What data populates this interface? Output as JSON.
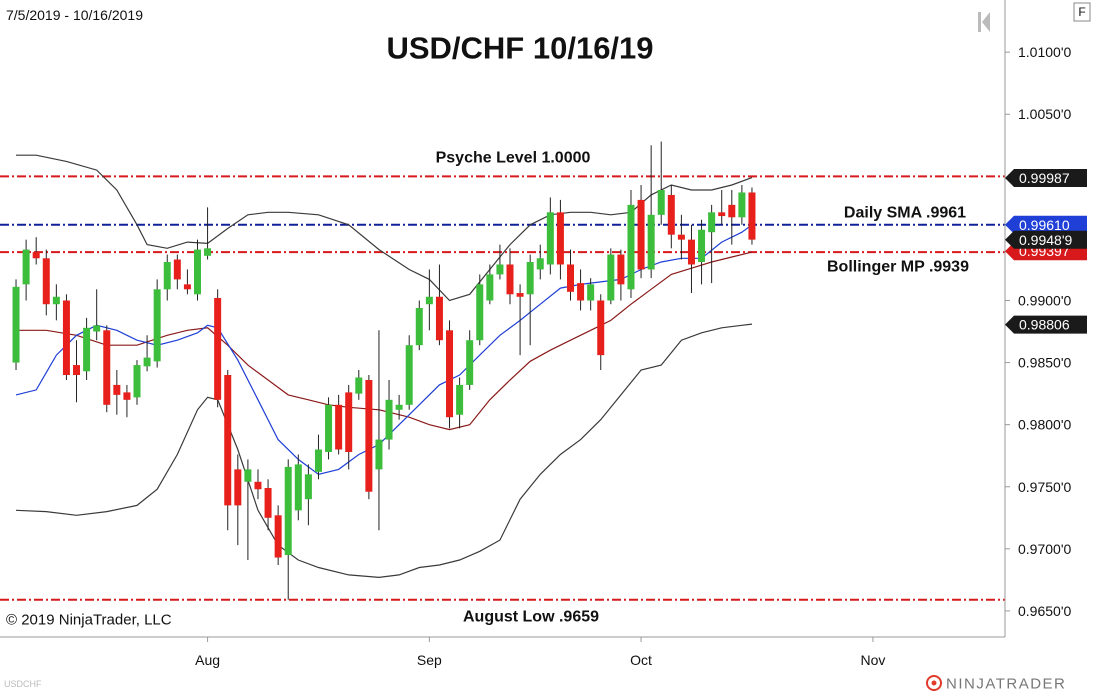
{
  "chart_data": {
    "type": "candlestick",
    "title": "USD/CHF 10/16/19",
    "subtitle": "7/5/2019 - 10/16/2019",
    "credit": "© 2019 NinjaTrader, LLC",
    "corner_button": "F",
    "watermark": "USDCHF",
    "logo": "NINJATRADER",
    "categories": [
      null,
      null,
      null,
      null,
      null,
      null,
      null,
      null,
      null,
      null,
      null,
      null,
      null,
      null,
      null,
      null,
      null,
      null,
      null,
      null,
      null,
      null,
      null,
      null,
      null,
      null,
      null,
      null,
      null,
      null,
      null,
      null,
      null,
      null,
      null,
      null,
      null,
      null,
      null,
      null,
      null,
      null,
      null,
      null,
      null,
      null,
      null,
      null,
      null,
      null,
      null,
      null,
      null,
      null,
      null,
      null,
      null,
      null,
      null,
      null,
      null,
      null,
      null,
      null,
      null,
      null,
      null,
      null,
      null,
      null,
      null,
      null,
      null,
      null
    ],
    "open": [
      0.985,
      0.9913,
      0.9939,
      0.9934,
      0.9897,
      0.99,
      0.9848,
      0.9843,
      0.9875,
      0.9876,
      0.9832,
      0.9826,
      0.9822,
      0.9847,
      0.9851,
      0.9909,
      0.9933,
      0.9913,
      0.9905,
      0.9936,
      0.9902,
      0.984,
      0.9764,
      0.9754,
      0.9754,
      0.9749,
      0.9727,
      0.9695,
      0.9731,
      0.974,
      0.9762,
      0.9778,
      0.9816,
      0.9826,
      0.9825,
      0.9836,
      0.9764,
      0.9788,
      0.9812,
      0.9816,
      0.9864,
      0.9897,
      0.9903,
      0.9876,
      0.9808,
      0.9832,
      0.9868,
      0.99,
      0.9921,
      0.9929,
      0.9906,
      0.9905,
      0.9925,
      0.9929,
      0.9971,
      0.9929,
      0.9914,
      0.99,
      0.99,
      0.99,
      0.9937,
      0.9909,
      0.9981,
      0.9925,
      0.9969,
      0.9985,
      0.9953,
      0.9949,
      0.9931,
      0.9955,
      0.9971,
      0.9977,
      0.9967,
      0.9987
    ],
    "high": [
      0.9917,
      0.9949,
      0.9951,
      0.9941,
      0.9913,
      0.9905,
      0.9868,
      0.9886,
      0.9909,
      0.988,
      0.9844,
      0.9832,
      0.9852,
      0.9872,
      0.9917,
      0.9937,
      0.9937,
      0.9925,
      0.9949,
      0.9975,
      0.9909,
      0.9844,
      0.9776,
      0.9772,
      0.9764,
      0.9756,
      0.9735,
      0.9772,
      0.9776,
      0.9768,
      0.9792,
      0.9822,
      0.9824,
      0.9832,
      0.9844,
      0.984,
      0.9876,
      0.9836,
      0.9824,
      0.9872,
      0.99,
      0.9925,
      0.9929,
      0.9884,
      0.9838,
      0.9876,
      0.9921,
      0.9929,
      0.9945,
      0.9942,
      0.9913,
      0.9937,
      0.9945,
      0.9983,
      0.9981,
      0.9941,
      0.9925,
      0.9918,
      0.9905,
      0.9942,
      0.9941,
      0.9989,
      0.9993,
      1.0025,
      1.0028,
      0.9993,
      0.9969,
      0.9961,
      0.9965,
      0.9977,
      0.9989,
      0.9989,
      0.9993,
      0.9991
    ],
    "low": [
      0.9844,
      0.99,
      0.9929,
      0.9888,
      0.9884,
      0.9836,
      0.9818,
      0.9836,
      0.9868,
      0.981,
      0.9808,
      0.9806,
      0.9816,
      0.9843,
      0.9846,
      0.99,
      0.9909,
      0.9905,
      0.99,
      0.9933,
      0.9814,
      0.9715,
      0.9703,
      0.9691,
      0.974,
      0.9715,
      0.9687,
      0.9659,
      0.9723,
      0.9719,
      0.9756,
      0.9772,
      0.9776,
      0.9764,
      0.982,
      0.974,
      0.9715,
      0.978,
      0.9804,
      0.9812,
      0.986,
      0.9876,
      0.9864,
      0.9797,
      0.9797,
      0.9828,
      0.9864,
      0.9897,
      0.9917,
      0.9897,
      0.9856,
      0.9864,
      0.9917,
      0.9921,
      0.9917,
      0.99,
      0.9892,
      0.9892,
      0.9844,
      0.9897,
      0.99,
      0.9902,
      0.9918,
      0.9918,
      0.9961,
      0.9942,
      0.9933,
      0.9906,
      0.9913,
      0.9914,
      0.9961,
      0.9945,
      0.9961,
      0.9945
    ],
    "close": [
      0.9911,
      0.9941,
      0.9934,
      0.9897,
      0.9903,
      0.984,
      0.984,
      0.9878,
      0.988,
      0.9816,
      0.9824,
      0.982,
      0.9848,
      0.9854,
      0.9909,
      0.9931,
      0.9917,
      0.9909,
      0.9941,
      0.9942,
      0.982,
      0.9735,
      0.9735,
      0.9764,
      0.9748,
      0.9725,
      0.9693,
      0.9766,
      0.9768,
      0.976,
      0.978,
      0.9816,
      0.978,
      0.9778,
      0.9838,
      0.9746,
      0.9788,
      0.982,
      0.9816,
      0.9864,
      0.9894,
      0.9903,
      0.9868,
      0.9806,
      0.9832,
      0.9868,
      0.9913,
      0.9921,
      0.9929,
      0.9905,
      0.9903,
      0.9931,
      0.9934,
      0.9971,
      0.9929,
      0.9907,
      0.99,
      0.9913,
      0.9856,
      0.9937,
      0.9913,
      0.9977,
      0.9925,
      0.9969,
      0.9989,
      0.9953,
      0.9949,
      0.9929,
      0.9957,
      0.9971,
      0.9968,
      0.9967,
      0.9987,
      0.9949
    ],
    "up_color": "#3cbd3c",
    "down_color": "#e8201c",
    "lines": [
      {
        "color": "#3a3a3a",
        "x": [
          0,
          2,
          5,
          8,
          10,
          12,
          13,
          15,
          17,
          19,
          21,
          23,
          25,
          27,
          30,
          33,
          36,
          39,
          41,
          43,
          45,
          47,
          49,
          51,
          53,
          55,
          57,
          59,
          61,
          63,
          65,
          67,
          69,
          71,
          73
        ],
        "values": [
          1.0017,
          1.0017,
          1.0012,
          1.0005,
          0.9989,
          0.9961,
          0.9945,
          0.9942,
          0.9947,
          0.9946,
          0.9958,
          0.9969,
          0.9971,
          0.9971,
          0.9969,
          0.9961,
          0.9941,
          0.9925,
          0.9917,
          0.99,
          0.9905,
          0.9925,
          0.9945,
          0.9961,
          0.9969,
          0.9971,
          0.9971,
          0.9969,
          0.9971,
          0.9985,
          0.9993,
          0.9989,
          0.9989,
          0.9993,
          0.9999
        ]
      },
      {
        "color": "#3a3a3a",
        "x": [
          0,
          3,
          6,
          9,
          12,
          14,
          16,
          18,
          19,
          20,
          22,
          24,
          26,
          28,
          30,
          33,
          36,
          38,
          40,
          42,
          44,
          46,
          48,
          50,
          52,
          54,
          56,
          58,
          60,
          62,
          64,
          66,
          68,
          70,
          72,
          73
        ],
        "values": [
          0.9731,
          0.973,
          0.9727,
          0.973,
          0.9735,
          0.9748,
          0.9776,
          0.9812,
          0.9822,
          0.982,
          0.978,
          0.9731,
          0.9703,
          0.9691,
          0.9685,
          0.9679,
          0.9677,
          0.9679,
          0.9685,
          0.9687,
          0.9691,
          0.9698,
          0.9707,
          0.974,
          0.976,
          0.9776,
          0.9788,
          0.9804,
          0.9824,
          0.9844,
          0.9848,
          0.9868,
          0.9874,
          0.9878,
          0.988,
          0.9881
        ]
      },
      {
        "color": "#8b1a1a",
        "x": [
          0,
          3,
          6,
          9,
          12,
          15,
          17,
          19,
          21,
          23,
          25,
          27,
          29,
          31,
          33,
          36,
          39,
          41,
          43,
          45,
          47,
          49,
          51,
          53,
          55,
          57,
          59,
          61,
          63,
          65,
          67,
          69,
          71,
          73
        ],
        "values": [
          0.9876,
          0.9876,
          0.9872,
          0.9864,
          0.9864,
          0.9872,
          0.9876,
          0.9878,
          0.9864,
          0.9848,
          0.9836,
          0.9824,
          0.982,
          0.9816,
          0.9814,
          0.9812,
          0.9806,
          0.98,
          0.9796,
          0.98,
          0.982,
          0.9836,
          0.9851,
          0.986,
          0.9868,
          0.9876,
          0.9884,
          0.9897,
          0.9909,
          0.9921,
          0.9926,
          0.9931,
          0.9935,
          0.9939
        ]
      },
      {
        "color": "#1f3fd6",
        "x": [
          0,
          2,
          4,
          6,
          8,
          10,
          12,
          14,
          16,
          18,
          19,
          20,
          22,
          24,
          26,
          28,
          30,
          32,
          34,
          36,
          38,
          40,
          42,
          44,
          46,
          48,
          50,
          52,
          54,
          56,
          58,
          60,
          62,
          64,
          66,
          68,
          70,
          72,
          73
        ],
        "values": [
          0.9824,
          0.9828,
          0.9856,
          0.9872,
          0.988,
          0.9876,
          0.9868,
          0.9864,
          0.9868,
          0.9874,
          0.988,
          0.9878,
          0.9852,
          0.982,
          0.9788,
          0.9772,
          0.976,
          0.9764,
          0.9776,
          0.9784,
          0.98,
          0.9816,
          0.9832,
          0.984,
          0.9856,
          0.9872,
          0.9884,
          0.9897,
          0.991,
          0.9913,
          0.9915,
          0.9917,
          0.9925,
          0.9931,
          0.9934,
          0.9934,
          0.9947,
          0.9955,
          0.9961
        ]
      }
    ],
    "levels": [
      {
        "value": 1.0,
        "color": "#d7191c",
        "label": "Psyche Level 1.0000"
      },
      {
        "value": 0.9961,
        "color": "#10209a",
        "label": "Daily SMA .9961"
      },
      {
        "value": 0.9939,
        "color": "#d7191c",
        "label": "Bollinger MP .9939"
      },
      {
        "value": 0.9659,
        "color": "#d7191c",
        "label": "August Low .9659"
      }
    ],
    "price_tags": [
      {
        "value": 0.99987,
        "color": "#1a1a1a"
      },
      {
        "value": 0.99397,
        "color": "#d7191c"
      },
      {
        "value": 0.9961,
        "label": "0.99610",
        "color": "#1f3fd6"
      },
      {
        "value": 0.99489,
        "label": "0.9948'9",
        "color": "#1a1a1a"
      },
      {
        "value": 0.98806,
        "color": "#1a1a1a"
      }
    ],
    "xlim": [
      -1.59,
      98.1
    ],
    "xticks": [
      {
        "value": 19,
        "label": "Aug"
      },
      {
        "value": 41,
        "label": "Sep"
      },
      {
        "value": 62,
        "label": "Oct"
      },
      {
        "value": 85,
        "label": "Nov"
      }
    ],
    "ylim": [
      0.9629,
      1.0142
    ],
    "yticks": [
      {
        "value": 1.01,
        "label": "1.0100'0"
      },
      {
        "value": 1.005,
        "label": "1.0050'0"
      },
      {
        "value": 0.99,
        "label": "0.9900'0"
      },
      {
        "value": 0.985,
        "label": "0.9850'0"
      },
      {
        "value": 0.98,
        "label": "0.9800'0"
      },
      {
        "value": 0.975,
        "label": "0.9750'0"
      },
      {
        "value": 0.97,
        "label": "0.9700'0"
      },
      {
        "value": 0.965,
        "label": "0.9650'0"
      }
    ]
  }
}
